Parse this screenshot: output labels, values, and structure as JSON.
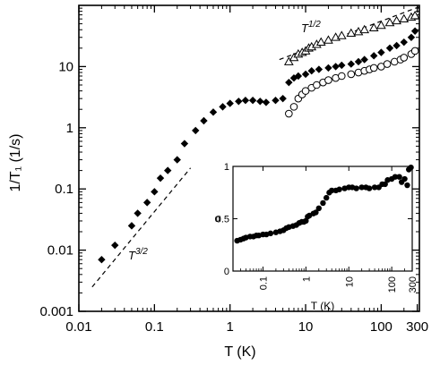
{
  "chart_data": [
    {
      "type": "scatter",
      "xlabel": "T (K)",
      "ylabel": "1/T₁ (1/s)",
      "xscale": "log",
      "yscale": "log",
      "xlim": [
        0.01,
        320
      ],
      "ylim": [
        0.001,
        100
      ],
      "x_ticks": [
        0.01,
        0.1,
        1,
        10,
        100,
        300
      ],
      "x_tick_labels": [
        "0.01",
        "0.1",
        "1",
        "10",
        "100",
        "300"
      ],
      "y_ticks": [
        0.001,
        0.01,
        0.1,
        1,
        10
      ],
      "y_tick_labels": [
        "0.001",
        "0.01",
        "0.1",
        "1",
        "10"
      ],
      "grid": false,
      "series": [
        {
          "marker": "filled-diamond",
          "x": [
            0.02,
            0.03,
            0.05,
            0.06,
            0.08,
            0.1,
            0.12,
            0.15,
            0.2,
            0.25,
            0.35,
            0.45,
            0.6,
            0.8,
            1.0,
            1.3,
            1.6,
            2.0,
            2.5,
            3.0,
            4.0,
            5.0,
            6.0,
            7.0,
            8.0,
            10,
            12,
            15,
            20,
            25,
            30,
            40,
            50,
            60,
            80,
            100,
            130,
            160,
            200,
            250,
            280
          ],
          "y": [
            0.007,
            0.012,
            0.025,
            0.04,
            0.06,
            0.09,
            0.15,
            0.2,
            0.3,
            0.55,
            0.9,
            1.3,
            1.8,
            2.2,
            2.5,
            2.7,
            2.8,
            2.8,
            2.7,
            2.6,
            2.8,
            3.0,
            5.5,
            6.5,
            7.0,
            7.5,
            8.5,
            9.0,
            9.5,
            10,
            10.5,
            11,
            12,
            13,
            15,
            17,
            20,
            22,
            25,
            30,
            38
          ]
        },
        {
          "marker": "open-triangle",
          "x": [
            6,
            7,
            8,
            9,
            10,
            11,
            12,
            14,
            16,
            20,
            25,
            30,
            40,
            50,
            60,
            80,
            100,
            130,
            160,
            200,
            250,
            280
          ],
          "y": [
            12,
            14,
            16,
            17,
            18,
            20,
            21,
            23,
            25,
            27,
            30,
            32,
            35,
            37,
            40,
            43,
            47,
            52,
            56,
            60,
            64,
            68
          ]
        },
        {
          "marker": "open-circle",
          "x": [
            6,
            7,
            8,
            9,
            10,
            12,
            14,
            17,
            20,
            25,
            30,
            40,
            50,
            60,
            70,
            80,
            100,
            120,
            150,
            180,
            200,
            250,
            280
          ],
          "y": [
            1.7,
            2.2,
            3.0,
            3.5,
            4.0,
            4.5,
            5.0,
            5.5,
            6.0,
            6.5,
            7.0,
            7.5,
            8.0,
            8.5,
            9.0,
            9.5,
            10,
            11,
            12,
            13,
            14,
            16,
            18
          ]
        }
      ],
      "annotations": [
        {
          "text": "T",
          "sup": "1/2",
          "line_x": [
            4.5,
            320
          ],
          "line_y": [
            13,
            95
          ]
        },
        {
          "text": "T",
          "sup": "3/2",
          "line_x": [
            0.015,
            0.3
          ],
          "line_y": [
            0.0025,
            0.22
          ]
        }
      ]
    },
    {
      "type": "scatter",
      "xlabel": "T (K)",
      "ylabel": "α",
      "xscale": "log",
      "yscale": "linear",
      "xlim": [
        0.02,
        300
      ],
      "ylim": [
        0,
        1.0
      ],
      "x_ticks": [
        0.1,
        1,
        10,
        100,
        300
      ],
      "x_tick_labels": [
        "0.1",
        "1",
        "10",
        "100",
        "300"
      ],
      "y_ticks": [
        0,
        0.5,
        1
      ],
      "y_tick_labels": [
        "0",
        "0.5",
        "1"
      ],
      "series": [
        {
          "marker": "filled-circle",
          "x": [
            0.025,
            0.03,
            0.035,
            0.04,
            0.05,
            0.06,
            0.07,
            0.08,
            0.1,
            0.12,
            0.15,
            0.2,
            0.25,
            0.3,
            0.35,
            0.4,
            0.5,
            0.6,
            0.7,
            0.8,
            0.9,
            1.0,
            1.1,
            1.2,
            1.5,
            1.7,
            2.0,
            2.5,
            3.0,
            3.5,
            4,
            5,
            6,
            8,
            10,
            12,
            15,
            20,
            25,
            30,
            40,
            50,
            60,
            70,
            80,
            100,
            120,
            150,
            170,
            200,
            230,
            250,
            280
          ],
          "y": [
            0.29,
            0.3,
            0.31,
            0.32,
            0.33,
            0.33,
            0.34,
            0.34,
            0.35,
            0.35,
            0.36,
            0.37,
            0.38,
            0.39,
            0.41,
            0.42,
            0.43,
            0.44,
            0.46,
            0.47,
            0.47,
            0.48,
            0.52,
            0.53,
            0.55,
            0.56,
            0.6,
            0.65,
            0.7,
            0.75,
            0.77,
            0.77,
            0.78,
            0.79,
            0.8,
            0.8,
            0.79,
            0.8,
            0.8,
            0.79,
            0.8,
            0.8,
            0.83,
            0.83,
            0.87,
            0.88,
            0.9,
            0.9,
            0.85,
            0.88,
            0.82,
            0.97,
            0.99
          ]
        }
      ]
    }
  ]
}
